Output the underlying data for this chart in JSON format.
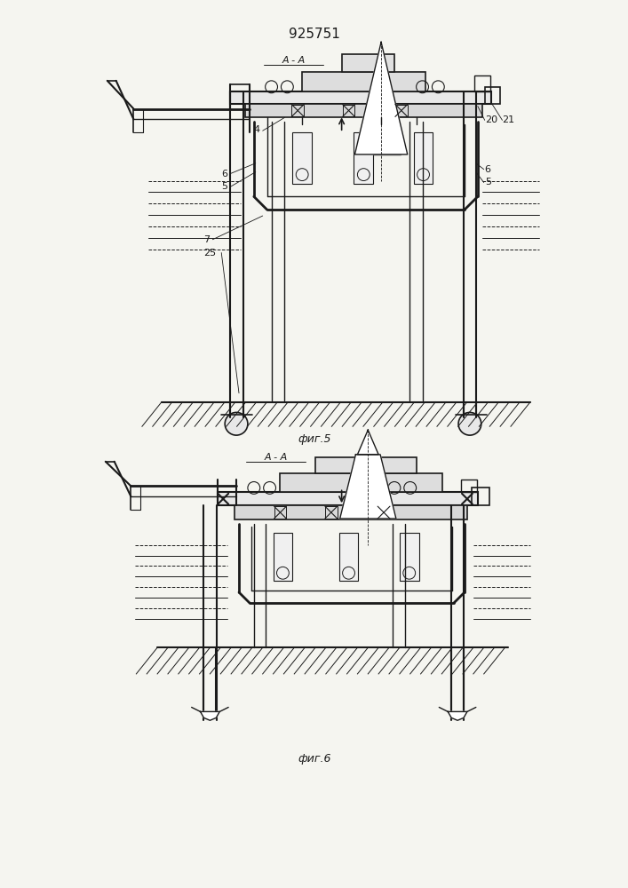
{
  "title": "925751",
  "fig5_label": "фиг.5",
  "fig6_label": "фиг.6",
  "section_label": "A - A",
  "bg_color": "#f5f5f0",
  "line_color": "#1a1a1a",
  "lw": 1.0,
  "tlw": 0.6
}
